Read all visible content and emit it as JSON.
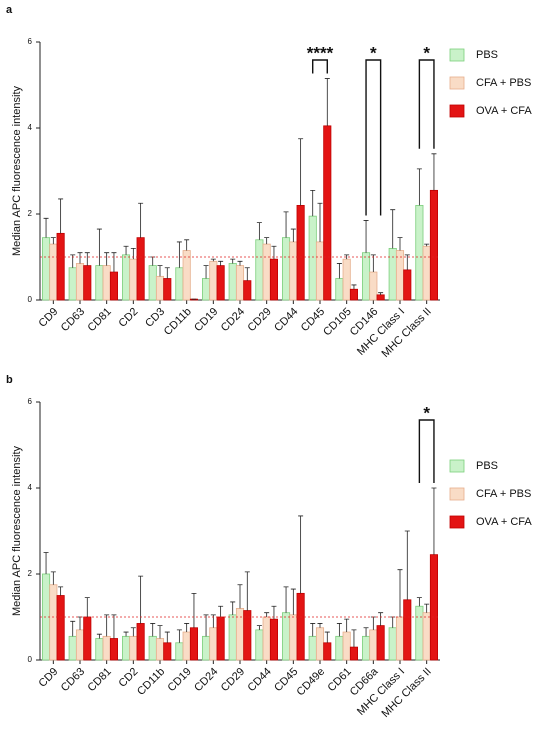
{
  "chart_data": [
    {
      "type": "bar",
      "panel_label": "a",
      "ylabel": "Median APC fluorescence intensity",
      "categories": [
        "CD9",
        "CD63",
        "CD81",
        "CD2",
        "CD3",
        "CD11b",
        "CD19",
        "CD24",
        "CD29",
        "CD44",
        "CD45",
        "CD105",
        "CD146",
        "MHC Class I",
        "MHC Class II"
      ],
      "series": [
        {
          "name": "PBS",
          "color": "#c9f2c9",
          "edge_color": "#7ccf7c",
          "values": [
            1.45,
            0.75,
            0.8,
            1.05,
            0.8,
            0.75,
            0.5,
            0.85,
            1.4,
            1.45,
            1.95,
            0.5,
            1.1,
            1.2,
            2.2
          ],
          "errors": [
            0.45,
            0.3,
            0.85,
            0.2,
            0.2,
            0.6,
            0.3,
            0.1,
            0.4,
            0.6,
            0.6,
            0.35,
            0.75,
            0.9,
            0.85
          ]
        },
        {
          "name": "CFA + PBS",
          "color": "#f9dcc6",
          "edge_color": "#e6ae8c",
          "values": [
            1.3,
            0.85,
            0.8,
            0.95,
            0.55,
            1.15,
            0.9,
            0.8,
            1.3,
            1.35,
            1.35,
            0.95,
            0.65,
            1.15,
            1.25
          ],
          "errors": [
            0.15,
            0.25,
            0.3,
            0.25,
            0.25,
            0.25,
            0.05,
            0.1,
            0.15,
            0.3,
            0.9,
            0.1,
            0.4,
            0.3,
            0.05
          ]
        },
        {
          "name": "OVA + CFA",
          "color": "#e31414",
          "edge_color": "#c00000",
          "values": [
            1.55,
            0.8,
            0.65,
            1.45,
            0.5,
            0.02,
            0.8,
            0.45,
            0.95,
            2.2,
            4.05,
            0.25,
            0.12,
            0.7,
            2.55
          ],
          "errors": [
            0.8,
            0.3,
            0.45,
            0.8,
            0.25,
            0,
            0.1,
            0.3,
            0.3,
            1.55,
            1.1,
            0.1,
            0.05,
            0.35,
            0.85
          ]
        }
      ],
      "ylim": [
        0,
        6
      ],
      "yticks": [
        0,
        2,
        4,
        6
      ],
      "reference_line": 1,
      "annotations": [
        {
          "text": "****",
          "category": "CD45"
        },
        {
          "text": "*",
          "category": "CD146"
        },
        {
          "text": "*",
          "category": "MHC Class II"
        }
      ]
    },
    {
      "type": "bar",
      "panel_label": "b",
      "ylabel": "Median APC fluorescence intensity",
      "categories": [
        "CD9",
        "CD63",
        "CD81",
        "CD2",
        "CD11b",
        "CD19",
        "CD24",
        "CD29",
        "CD44",
        "CD45",
        "CD49e",
        "CD61",
        "CD66a",
        "MHC Class I",
        "MHC Class II"
      ],
      "series": [
        {
          "name": "PBS",
          "color": "#c9f2c9",
          "edge_color": "#7ccf7c",
          "values": [
            2.0,
            0.55,
            0.5,
            0.55,
            0.55,
            0.4,
            0.55,
            1.05,
            0.7,
            1.1,
            0.55,
            0.55,
            0.55,
            0.75,
            1.25
          ],
          "errors": [
            0.5,
            0.35,
            0.1,
            0.1,
            0.3,
            0.3,
            0.5,
            0.3,
            0.1,
            0.6,
            0.3,
            0.3,
            0.2,
            0.25,
            0.2
          ]
        },
        {
          "name": "CFA + PBS",
          "color": "#f9dcc6",
          "edge_color": "#e6ae8c",
          "values": [
            1.75,
            0.7,
            0.55,
            0.55,
            0.5,
            0.65,
            0.75,
            1.2,
            1.0,
            1.05,
            0.75,
            0.65,
            0.7,
            1.0,
            1.1
          ],
          "errors": [
            0.3,
            0.3,
            0.5,
            0.2,
            0.3,
            0.2,
            0.3,
            0.55,
            0.1,
            0.6,
            0.1,
            0.3,
            0.3,
            1.1,
            0.2
          ]
        },
        {
          "name": "OVA + CFA",
          "color": "#e31414",
          "edge_color": "#c00000",
          "values": [
            1.5,
            1.0,
            0.5,
            0.85,
            0.4,
            0.75,
            1.0,
            1.15,
            0.95,
            1.55,
            0.4,
            0.3,
            0.8,
            1.4,
            2.45
          ],
          "errors": [
            0.2,
            0.45,
            0.55,
            1.1,
            0.25,
            0.8,
            0.25,
            0.9,
            0.3,
            1.8,
            0.25,
            0.4,
            0.3,
            1.6,
            1.55
          ]
        }
      ],
      "ylim": [
        0,
        6
      ],
      "yticks": [
        0,
        2,
        4,
        6
      ],
      "reference_line": 1,
      "annotations": [
        {
          "text": "*",
          "category": "MHC Class II"
        }
      ]
    }
  ]
}
